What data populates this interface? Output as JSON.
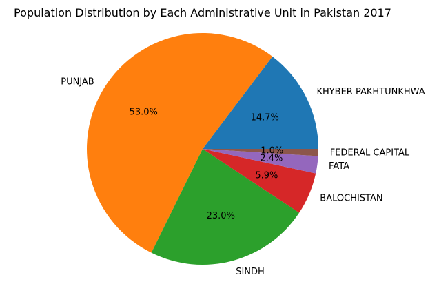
{
  "chart_data": {
    "type": "pie",
    "title": "Population Distribution by Each Administrative Unit in Pakistan 2017",
    "autopct_decimals": 1,
    "start_angle_deg": 0,
    "direction": "counterclockwise",
    "slices": [
      {
        "label": "KHYBER PAKHTUNKHWA",
        "value": 14.7,
        "color": "#1f77b4"
      },
      {
        "label": "PUNJAB",
        "value": 53.0,
        "color": "#ff7f0e"
      },
      {
        "label": "SINDH",
        "value": 23.0,
        "color": "#2ca02c"
      },
      {
        "label": "BALOCHISTAN",
        "value": 5.9,
        "color": "#d62728"
      },
      {
        "label": "FATA",
        "value": 2.4,
        "color": "#9467bd"
      },
      {
        "label": "FEDERAL CAPITAL",
        "value": 1.0,
        "color": "#8c564b"
      }
    ]
  }
}
